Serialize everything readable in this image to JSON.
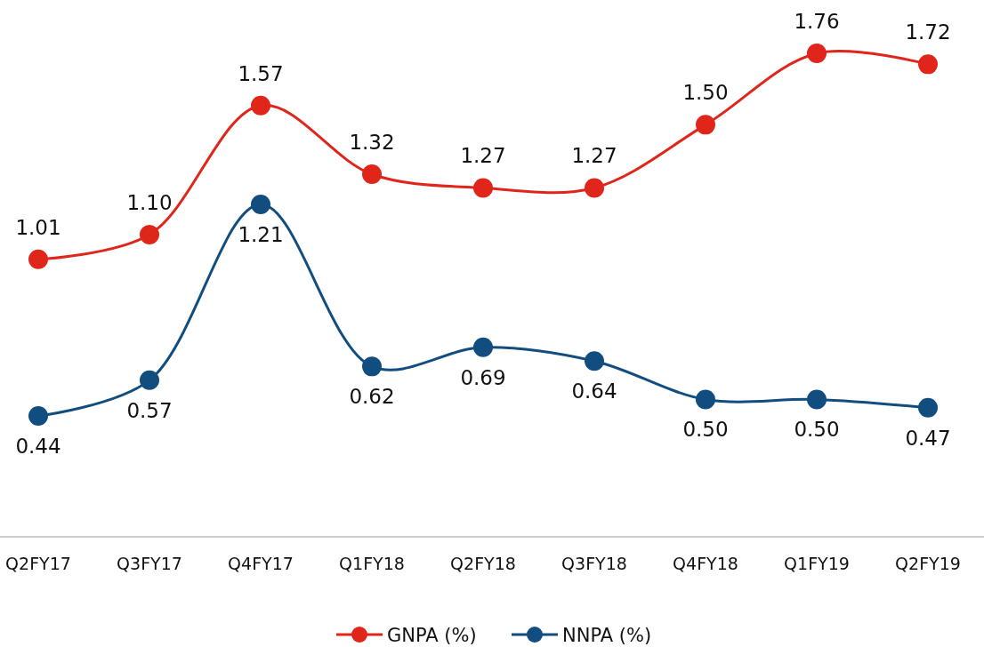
{
  "chart_data": {
    "type": "line",
    "categories": [
      "Q2FY17",
      "Q3FY17",
      "Q4FY17",
      "Q1FY18",
      "Q2FY18",
      "Q3FY18",
      "Q4FY18",
      "Q1FY19",
      "Q2FY19"
    ],
    "series": [
      {
        "name": "GNPA (%)",
        "color": "#e0251b",
        "values": [
          1.01,
          1.1,
          1.57,
          1.32,
          1.27,
          1.27,
          1.5,
          1.76,
          1.72
        ],
        "value_labels": [
          "1.01",
          "1.10",
          "1.57",
          "1.32",
          "1.27",
          "1.27",
          "1.50",
          "1.76",
          "1.72"
        ]
      },
      {
        "name": "NNPA (%)",
        "color": "#124d80",
        "values": [
          0.44,
          0.57,
          1.21,
          0.62,
          0.69,
          0.64,
          0.5,
          0.5,
          0.47
        ],
        "value_labels": [
          "0.44",
          "0.57",
          "1.21",
          "0.62",
          "0.69",
          "0.64",
          "0.50",
          "0.50",
          "0.47"
        ]
      }
    ],
    "marker": "circle",
    "legend": "bottom",
    "grid": false
  }
}
